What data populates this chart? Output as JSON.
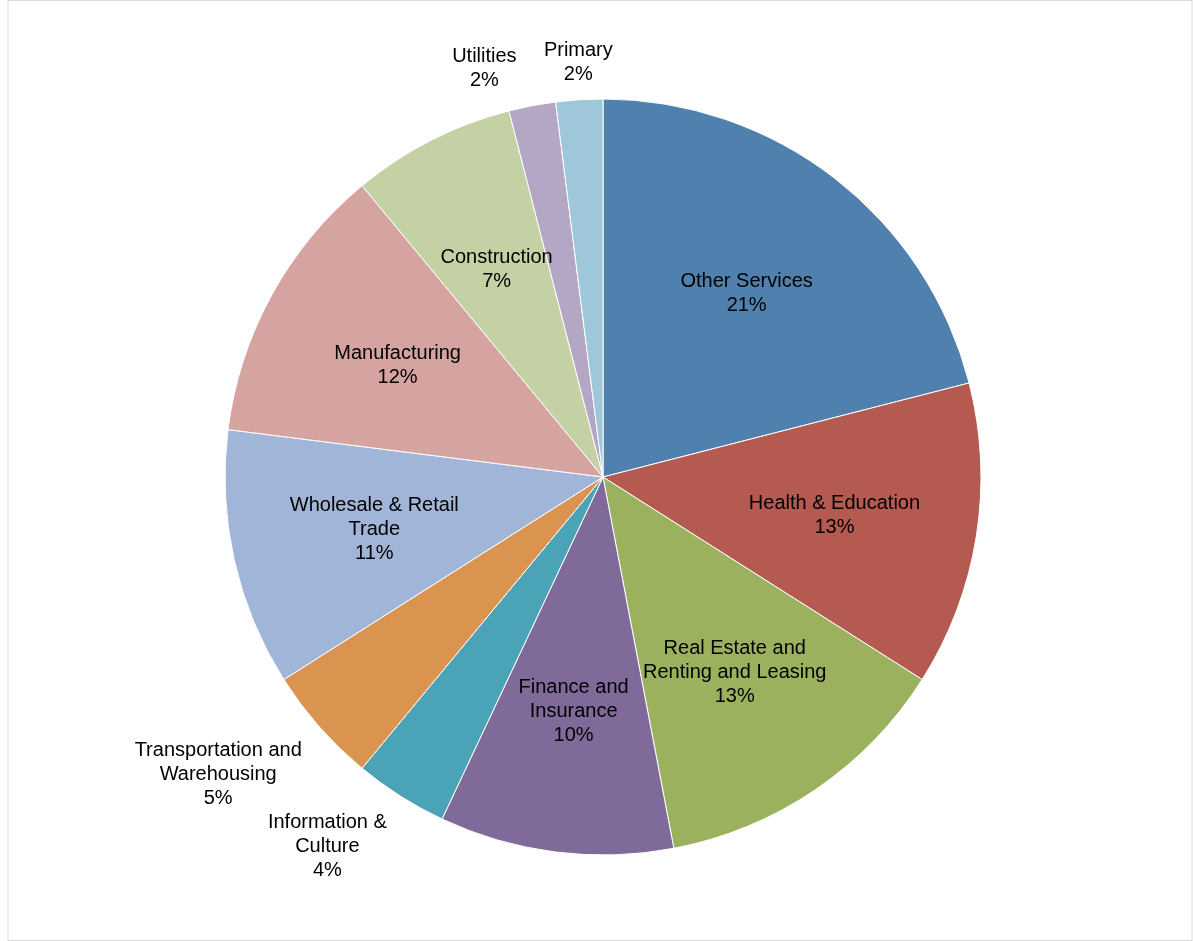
{
  "chart_data": {
    "type": "pie",
    "categories": [
      "Other Services",
      "Health & Education",
      "Real Estate and Renting and Leasing",
      "Finance and Insurance",
      "Information & Culture",
      "Transportation and Warehousing",
      "Wholesale & Retail Trade",
      "Manufacturing",
      "Construction",
      "Utilities",
      "Primary"
    ],
    "values": [
      21,
      13,
      13,
      10,
      4,
      5,
      11,
      12,
      7,
      2,
      2
    ],
    "colors": [
      "#5080ae",
      "#b55a51",
      "#9bb15e",
      "#806a9a",
      "#4ba3b8",
      "#db944f",
      "#a0b5d7",
      "#d5a4a0",
      "#c3d1a4",
      "#b4a7c6",
      "#9ec8d9"
    ],
    "value_labels": [
      "21%",
      "13%",
      "13%",
      "10%",
      "4%",
      "5%",
      "11%",
      "12%",
      "7%",
      "2%",
      "2%"
    ]
  }
}
